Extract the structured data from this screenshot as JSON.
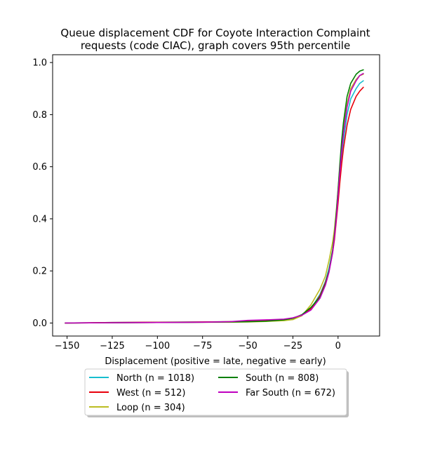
{
  "chart_data": {
    "type": "line",
    "title_lines": [
      "Queue displacement CDF for Coyote Interaction Complaint",
      "requests (code CIAC), graph covers 95th percentile"
    ],
    "xlabel": "Displacement (positive = late, negative = early)",
    "ylabel": "",
    "xlim": [
      -158,
      23
    ],
    "ylim": [
      -0.05,
      1.03
    ],
    "xticks": [
      -150,
      -125,
      -100,
      -75,
      -50,
      -25,
      0
    ],
    "xtick_labels": [
      "−150",
      "−125",
      "−100",
      "−75",
      "−50",
      "−25",
      "0"
    ],
    "yticks": [
      0.0,
      0.2,
      0.4,
      0.6,
      0.8,
      1.0
    ],
    "ytick_labels": [
      "0.0",
      "0.2",
      "0.4",
      "0.6",
      "0.8",
      "1.0"
    ],
    "grid": false,
    "legend_position": "below chart, two columns",
    "series": [
      {
        "name": "North (n = 1018)",
        "color": "#17becf",
        "x": [
          -151,
          -125,
          -100,
          -75,
          -60,
          -50,
          -40,
          -30,
          -25,
          -20,
          -15,
          -10,
          -7,
          -5,
          -3,
          -2,
          -1,
          0,
          1,
          2,
          3,
          5,
          7,
          10,
          12,
          14
        ],
        "y": [
          0.0,
          0.002,
          0.003,
          0.004,
          0.005,
          0.007,
          0.009,
          0.013,
          0.018,
          0.03,
          0.055,
          0.11,
          0.16,
          0.21,
          0.28,
          0.33,
          0.4,
          0.48,
          0.57,
          0.64,
          0.7,
          0.8,
          0.86,
          0.9,
          0.92,
          0.93
        ]
      },
      {
        "name": "West (n = 512)",
        "color": "#e8000b",
        "x": [
          -151,
          -125,
          -100,
          -75,
          -60,
          -50,
          -40,
          -30,
          -25,
          -20,
          -15,
          -10,
          -7,
          -5,
          -3,
          -2,
          -1,
          0,
          1,
          2,
          3,
          5,
          7,
          10,
          12,
          14
        ],
        "y": [
          0.0,
          0.002,
          0.003,
          0.004,
          0.005,
          0.007,
          0.009,
          0.013,
          0.018,
          0.03,
          0.055,
          0.105,
          0.155,
          0.2,
          0.27,
          0.32,
          0.39,
          0.46,
          0.54,
          0.61,
          0.67,
          0.76,
          0.82,
          0.87,
          0.89,
          0.905
        ]
      },
      {
        "name": "Loop (n = 304)",
        "color": "#bcbd22",
        "x": [
          -151,
          -125,
          -100,
          -75,
          -60,
          -50,
          -40,
          -30,
          -25,
          -20,
          -15,
          -10,
          -7,
          -5,
          -3,
          -2,
          -1,
          0,
          1,
          2,
          3,
          5,
          7,
          10,
          12,
          14
        ],
        "y": [
          0.0,
          0.001,
          0.002,
          0.003,
          0.003,
          0.004,
          0.006,
          0.009,
          0.013,
          0.028,
          0.07,
          0.13,
          0.18,
          0.24,
          0.31,
          0.36,
          0.43,
          0.51,
          0.6,
          0.68,
          0.75,
          0.84,
          0.9,
          0.935,
          0.95,
          0.955
        ]
      },
      {
        "name": "South (n = 808)",
        "color": "#008000",
        "x": [
          -151,
          -125,
          -100,
          -75,
          -60,
          -50,
          -40,
          -30,
          -25,
          -20,
          -15,
          -10,
          -7,
          -5,
          -3,
          -2,
          -1,
          0,
          1,
          2,
          3,
          5,
          7,
          10,
          12,
          14
        ],
        "y": [
          0.0,
          0.001,
          0.002,
          0.003,
          0.004,
          0.005,
          0.007,
          0.012,
          0.018,
          0.032,
          0.06,
          0.1,
          0.15,
          0.2,
          0.28,
          0.34,
          0.42,
          0.51,
          0.61,
          0.7,
          0.77,
          0.87,
          0.92,
          0.955,
          0.967,
          0.972
        ]
      },
      {
        "name": "Far South (n = 672)",
        "color": "#bf00bf",
        "x": [
          -151,
          -125,
          -100,
          -75,
          -60,
          -50,
          -40,
          -30,
          -25,
          -20,
          -15,
          -10,
          -7,
          -5,
          -3,
          -2,
          -1,
          0,
          1,
          2,
          3,
          5,
          7,
          10,
          12,
          14
        ],
        "y": [
          0.0,
          0.001,
          0.002,
          0.003,
          0.005,
          0.01,
          0.012,
          0.015,
          0.02,
          0.03,
          0.05,
          0.095,
          0.145,
          0.195,
          0.27,
          0.33,
          0.4,
          0.49,
          0.58,
          0.66,
          0.73,
          0.83,
          0.89,
          0.93,
          0.95,
          0.958
        ]
      }
    ]
  }
}
